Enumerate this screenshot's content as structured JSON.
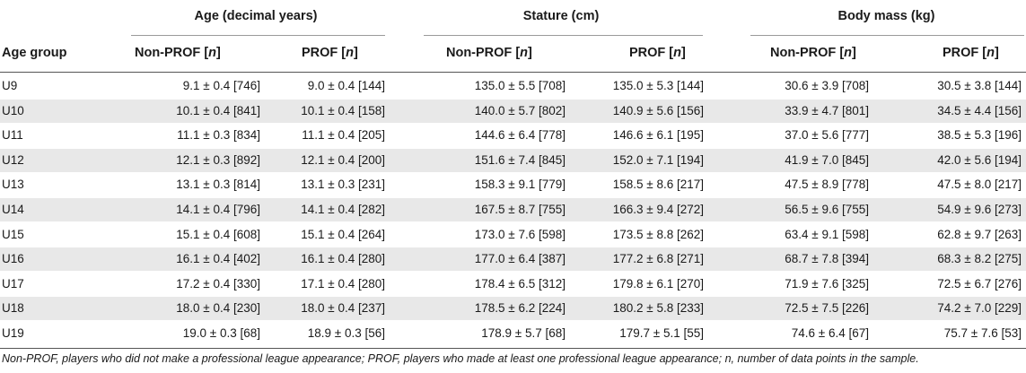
{
  "header": {
    "group_age": "Age (decimal years)",
    "group_stature": "Stature (cm)",
    "group_mass": "Body mass (kg)",
    "col_age_group": "Age group",
    "col_nonprof": "Non-PROF [",
    "col_prof": "PROF [",
    "n_letter": "n",
    "bracket_close": "]"
  },
  "rows": [
    {
      "group": "U9",
      "age_np": "9.1 ± 0.4 [746]",
      "age_p": "9.0 ± 0.4 [144]",
      "st_np": "135.0 ± 5.5 [708]",
      "st_p": "135.0 ± 5.3 [144]",
      "bm_np": "30.6 ± 3.9 [708]",
      "bm_p": "30.5 ± 3.8 [144]"
    },
    {
      "group": "U10",
      "age_np": "10.1 ± 0.4 [841]",
      "age_p": "10.1 ± 0.4 [158]",
      "st_np": "140.0 ± 5.7 [802]",
      "st_p": "140.9 ± 5.6 [156]",
      "bm_np": "33.9 ± 4.7 [801]",
      "bm_p": "34.5 ± 4.4 [156]"
    },
    {
      "group": "U11",
      "age_np": "11.1 ± 0.3 [834]",
      "age_p": "11.1 ± 0.4 [205]",
      "st_np": "144.6 ± 6.4 [778]",
      "st_p": "146.6 ± 6.1 [195]",
      "bm_np": "37.0 ± 5.6 [777]",
      "bm_p": "38.5 ± 5.3 [196]"
    },
    {
      "group": "U12",
      "age_np": "12.1 ± 0.3 [892]",
      "age_p": "12.1 ± 0.4 [200]",
      "st_np": "151.6 ± 7.4 [845]",
      "st_p": "152.0 ± 7.1 [194]",
      "bm_np": "41.9 ± 7.0 [845]",
      "bm_p": "42.0 ± 5.6 [194]"
    },
    {
      "group": "U13",
      "age_np": "13.1 ± 0.3 [814]",
      "age_p": "13.1 ± 0.3 [231]",
      "st_np": "158.3 ± 9.1 [779]",
      "st_p": "158.5 ± 8.6 [217]",
      "bm_np": "47.5 ± 8.9 [778]",
      "bm_p": "47.5 ± 8.0 [217]"
    },
    {
      "group": "U14",
      "age_np": "14.1 ± 0.4 [796]",
      "age_p": "14.1 ± 0.4 [282]",
      "st_np": "167.5 ± 8.7 [755]",
      "st_p": "166.3 ± 9.4 [272]",
      "bm_np": "56.5 ± 9.6 [755]",
      "bm_p": "54.9 ± 9.6 [273]"
    },
    {
      "group": "U15",
      "age_np": "15.1 ± 0.4 [608]",
      "age_p": "15.1 ± 0.4 [264]",
      "st_np": "173.0 ± 7.6 [598]",
      "st_p": "173.5 ± 8.8 [262]",
      "bm_np": "63.4 ± 9.1 [598]",
      "bm_p": "62.8 ± 9.7 [263]"
    },
    {
      "group": "U16",
      "age_np": "16.1 ± 0.4 [402]",
      "age_p": "16.1 ± 0.4 [280]",
      "st_np": "177.0 ± 6.4 [387]",
      "st_p": "177.2 ± 6.8 [271]",
      "bm_np": "68.7 ± 7.8 [394]",
      "bm_p": "68.3 ± 8.2 [275]"
    },
    {
      "group": "U17",
      "age_np": "17.2 ± 0.4 [330]",
      "age_p": "17.1 ± 0.4 [280]",
      "st_np": "178.4 ± 6.5 [312]",
      "st_p": "179.8 ± 6.1 [270]",
      "bm_np": "71.9 ± 7.6 [325]",
      "bm_p": "72.5 ± 6.7 [276]"
    },
    {
      "group": "U18",
      "age_np": "18.0 ± 0.4 [230]",
      "age_p": "18.0 ± 0.4 [237]",
      "st_np": "178.5 ± 6.2 [224]",
      "st_p": "180.2 ± 5.8 [233]",
      "bm_np": "72.5 ± 7.5 [226]",
      "bm_p": "74.2 ± 7.0 [229]"
    },
    {
      "group": "U19",
      "age_np": "19.0 ± 0.3 [68]",
      "age_p": "18.9 ± 0.3 [56]",
      "st_np": "178.9 ± 5.7 [68]",
      "st_p": "179.7 ± 5.1 [55]",
      "bm_np": "74.6 ± 6.4 [67]",
      "bm_p": "75.7 ± 7.6 [53]"
    }
  ],
  "footnote": "Non-PROF, players who did not make a professional league appearance; PROF, players who made at least one professional league appearance; n, number of data points in the sample.",
  "colors": {
    "band": "#e8e8e8",
    "text": "#1a1a1a",
    "rule": "#555555"
  }
}
